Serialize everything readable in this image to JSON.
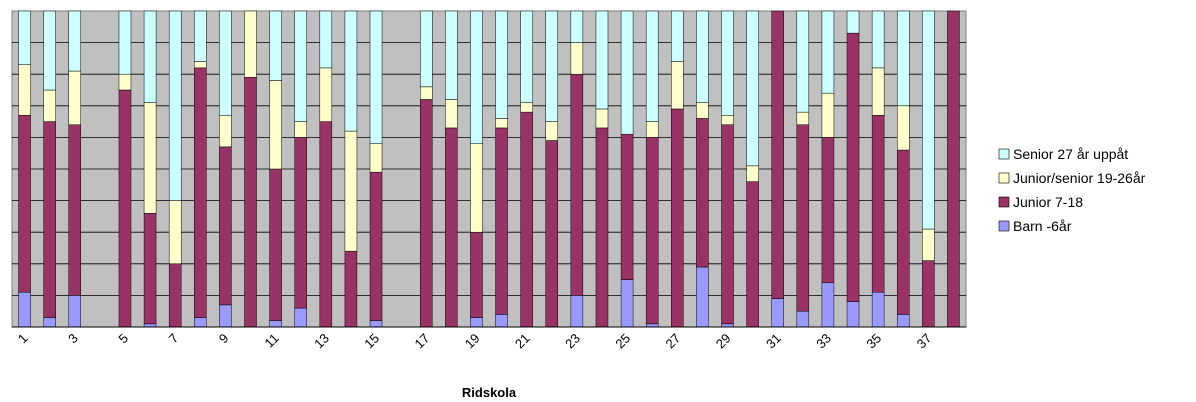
{
  "chart_data": {
    "type": "bar",
    "stacked": true,
    "percent_stacked": true,
    "xlabel": "Ridskola",
    "ylabel": "",
    "ylim": [
      0,
      100
    ],
    "grid": true,
    "legend_position": "right",
    "categories": [
      "1",
      "2",
      "3",
      "4",
      "5",
      "6",
      "7",
      "8",
      "9",
      "10",
      "11",
      "12",
      "13",
      "14",
      "15",
      "16",
      "17",
      "18",
      "19",
      "20",
      "21",
      "22",
      "23",
      "24",
      "25",
      "26",
      "27",
      "28",
      "29",
      "30",
      "31",
      "32",
      "33",
      "34",
      "35",
      "36",
      "37",
      "38"
    ],
    "tick_labels": [
      "1",
      "3",
      "5",
      "7",
      "9",
      "11",
      "13",
      "15",
      "17",
      "19",
      "21",
      "23",
      "25",
      "27",
      "29",
      "31",
      "33",
      "35",
      "37"
    ],
    "series": [
      {
        "name": "Barn -6år",
        "color": "#9999ff",
        "values": [
          11,
          3,
          10,
          0,
          0,
          1,
          0,
          3,
          7,
          0,
          2,
          6,
          0,
          0,
          2,
          0,
          0,
          0,
          3,
          4,
          0,
          0,
          10,
          0,
          15,
          1,
          0,
          19,
          1,
          0,
          9,
          5,
          14,
          8,
          11,
          4,
          0,
          0
        ]
      },
      {
        "name": "Junior 7-18",
        "color": "#993366",
        "values": [
          56,
          62,
          54,
          0,
          75,
          35,
          20,
          79,
          50,
          79,
          48,
          54,
          65,
          24,
          47,
          0,
          72,
          63,
          27,
          59,
          68,
          59,
          70,
          63,
          46,
          59,
          69,
          47,
          63,
          46,
          91,
          59,
          46,
          85,
          56,
          52,
          21,
          100
        ]
      },
      {
        "name": "Junior/senior 19-26år",
        "color": "#ffffcc",
        "values": [
          16,
          10,
          17,
          0,
          5,
          35,
          20,
          2,
          10,
          21,
          28,
          5,
          17,
          38,
          9,
          0,
          4,
          9,
          28,
          3,
          3,
          6,
          10,
          6,
          0,
          5,
          15,
          5,
          3,
          5,
          0,
          4,
          14,
          0,
          15,
          14,
          10,
          0
        ]
      },
      {
        "name": "Senior 27 år uppåt",
        "color": "#ccffff",
        "values": [
          17,
          25,
          19,
          0,
          20,
          29,
          60,
          16,
          33,
          0,
          22,
          35,
          18,
          38,
          42,
          0,
          24,
          28,
          42,
          34,
          29,
          35,
          10,
          31,
          39,
          35,
          16,
          29,
          33,
          49,
          0,
          32,
          26,
          7,
          18,
          30,
          69,
          0
        ]
      }
    ]
  }
}
